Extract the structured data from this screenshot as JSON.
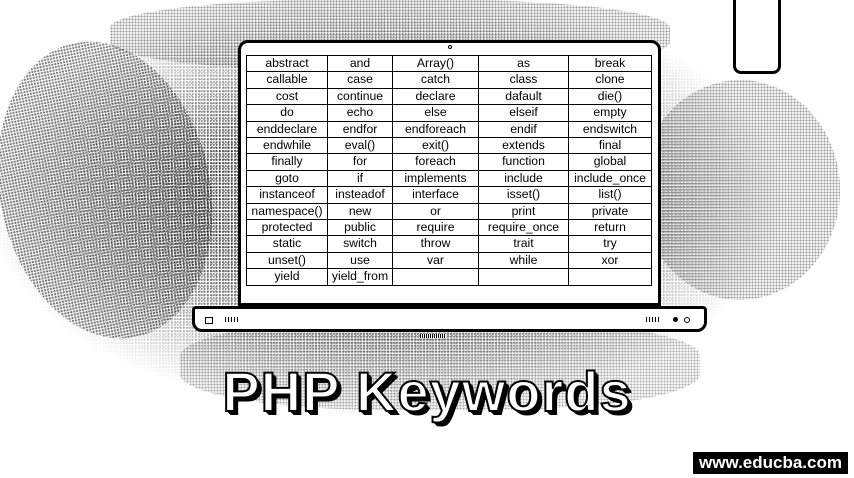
{
  "title": "PHP Keywords",
  "watermark": "www.educba.com",
  "keywords_table": {
    "rows": [
      [
        "abstract",
        "and",
        "Array()",
        "as",
        "break"
      ],
      [
        "callable",
        "case",
        "catch",
        "class",
        "clone"
      ],
      [
        "cost",
        "continue",
        "declare",
        "dafault",
        "die()"
      ],
      [
        "do",
        "echo",
        "else",
        "elseif",
        "empty"
      ],
      [
        "enddeclare",
        "endfor",
        "endforeach",
        "endif",
        "endswitch"
      ],
      [
        "endwhile",
        "eval()",
        "exit()",
        "extends",
        "final"
      ],
      [
        "finally",
        "for",
        "foreach",
        "function",
        "global"
      ],
      [
        "goto",
        "if",
        "implements",
        "include",
        "include_once"
      ],
      [
        "instanceof",
        "insteadof",
        "interface",
        "isset()",
        "list()"
      ],
      [
        "namespace()",
        "new",
        "or",
        "print",
        "private"
      ],
      [
        "protected",
        "public",
        "require",
        "require_once",
        "return"
      ],
      [
        "static",
        "switch",
        "throw",
        "trait",
        "try"
      ],
      [
        "unset()",
        "use",
        "var",
        "while",
        "xor"
      ],
      [
        "yield",
        "yield_from",
        "",
        "",
        ""
      ]
    ]
  }
}
